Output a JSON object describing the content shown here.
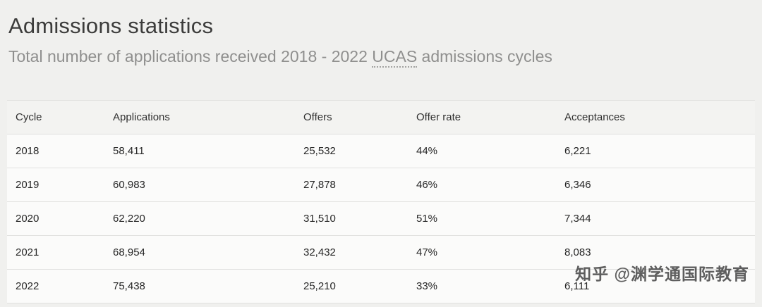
{
  "page": {
    "title": "Admissions statistics",
    "subtitle_prefix": "Total number of applications received 2018 - 2022 ",
    "subtitle_abbr": "UCAS",
    "subtitle_suffix": " admissions cycles"
  },
  "table": {
    "columns": [
      "Cycle",
      "Applications",
      "Offers",
      "Offer rate",
      "Acceptances"
    ],
    "rows": [
      [
        "2018",
        "58,411",
        "25,532",
        "44%",
        "6,221"
      ],
      [
        "2019",
        "60,983",
        "27,878",
        "46%",
        "6,346"
      ],
      [
        "2020",
        "62,220",
        "31,510",
        "51%",
        "7,344"
      ],
      [
        "2021",
        "68,954",
        "32,432",
        "47%",
        "8,083"
      ],
      [
        "2022",
        "75,438",
        "25,210",
        "33%",
        "6,111"
      ]
    ]
  },
  "watermark": "知乎 @渊学通国际教育",
  "colors": {
    "page_background": "#f0f0ee",
    "table_background": "#fbfbfa",
    "header_row_background": "#f3f3f1",
    "border": "#e1e1df",
    "title_text": "#3c3c3b",
    "subtitle_text": "#8f8f8e",
    "body_text": "#262626"
  }
}
